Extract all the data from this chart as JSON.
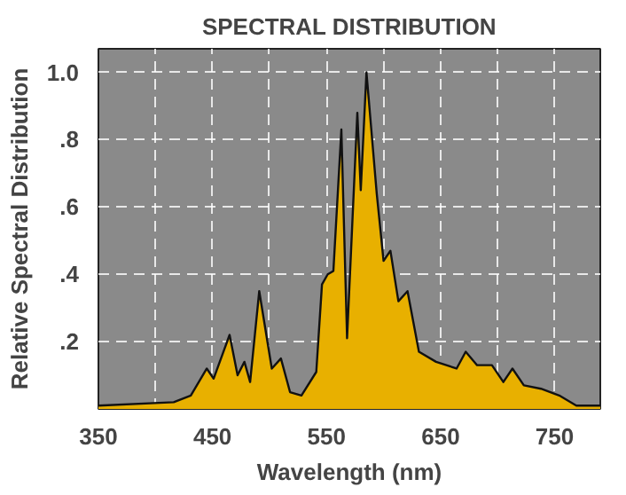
{
  "chart_data": {
    "type": "area",
    "title": "SPECTRAL DISTRIBUTION",
    "xlabel": "Wavelength (nm)",
    "ylabel": "Relative Spectral Distribution",
    "x": [
      350,
      416,
      431,
      445,
      451,
      465,
      472,
      478,
      483,
      491,
      502,
      510,
      518,
      528,
      541,
      546,
      551,
      556,
      563,
      568,
      577,
      580,
      585,
      594,
      600,
      606,
      613,
      621,
      631,
      646,
      664,
      672,
      682,
      695,
      705,
      713,
      723,
      738,
      754,
      769,
      790
    ],
    "series": [
      {
        "color": "#e8b000",
        "values": [
          0.01,
          0.02,
          0.04,
          0.12,
          0.09,
          0.22,
          0.1,
          0.14,
          0.08,
          0.35,
          0.12,
          0.15,
          0.05,
          0.04,
          0.11,
          0.37,
          0.4,
          0.41,
          0.83,
          0.21,
          0.88,
          0.65,
          1.0,
          0.64,
          0.44,
          0.47,
          0.32,
          0.35,
          0.17,
          0.14,
          0.12,
          0.17,
          0.13,
          0.13,
          0.08,
          0.12,
          0.07,
          0.06,
          0.04,
          0.01,
          0.01
        ]
      }
    ],
    "xlim": [
      350,
      790
    ],
    "ylim": [
      0,
      1.07
    ],
    "xticks": [
      350,
      {
        "value": 400,
        "label": null
      },
      450,
      {
        "value": 500,
        "label": null
      },
      550,
      {
        "value": 600,
        "label": null
      },
      650,
      {
        "value": 700,
        "label": null
      },
      750
    ],
    "yticks": [
      {
        "value": 0.2,
        "label": ".2"
      },
      {
        "value": 0.4,
        "label": ".4"
      },
      {
        "value": 0.6,
        "label": ".6"
      },
      {
        "value": 0.8,
        "label": ".8"
      },
      {
        "value": 1.0,
        "label": "1.0"
      }
    ],
    "grid": true,
    "line_style": "solid"
  }
}
